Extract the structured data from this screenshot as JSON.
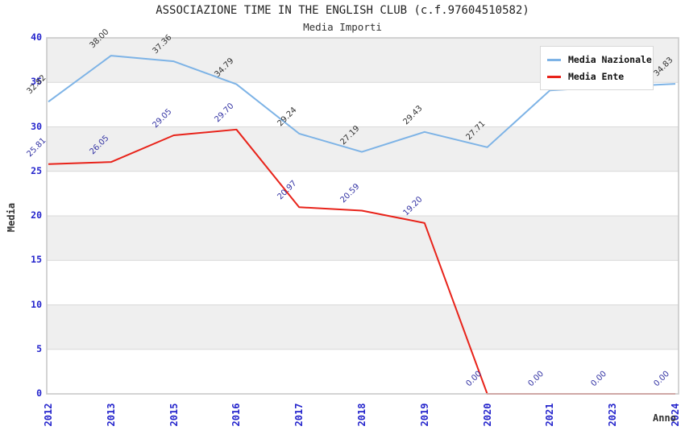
{
  "chart_data": {
    "type": "line",
    "title": "ASSOCIAZIONE TIME IN THE ENGLISH CLUB (c.f.97604510582)",
    "subtitle": "Media Importi",
    "xlabel": "Anno",
    "ylabel": "Media",
    "ylim": [
      0,
      40
    ],
    "ytick_step": 5,
    "yticks": [
      0,
      5,
      10,
      15,
      20,
      25,
      30,
      35,
      40
    ],
    "grid": true,
    "legend_position": "top-right",
    "categories": [
      "2012",
      "2013",
      "2015",
      "2016",
      "2017",
      "2018",
      "2019",
      "2020",
      "2021",
      "2023",
      "2024"
    ],
    "series": [
      {
        "name": "Media Nazionale",
        "color": "#7db3e6",
        "label_color": "#333333",
        "values": [
          32.82,
          38.0,
          37.36,
          34.79,
          29.24,
          27.19,
          29.43,
          27.71,
          34.1,
          34.5,
          34.83
        ],
        "labels": [
          "32.82",
          "38.00",
          "37.36",
          "34.79",
          "29.24",
          "27.19",
          "29.43",
          "27.71",
          null,
          null,
          "34.83"
        ]
      },
      {
        "name": "Media Ente",
        "color": "#e8231a",
        "label_color": "#3434a4",
        "values": [
          25.81,
          26.05,
          29.05,
          29.7,
          20.97,
          20.59,
          19.2,
          0.0,
          0.0,
          0.0,
          0.0
        ],
        "labels": [
          "25.81",
          "26.05",
          "29.05",
          "29.70",
          "20.97",
          "20.59",
          "19.20",
          "0.00",
          "0.00",
          "0.00",
          "0.00"
        ]
      }
    ],
    "style": {
      "band_color_even": "#ffffff",
      "band_color_odd": "#efefef",
      "gridline_color": "#d9d9d9",
      "frame_color": "#c9c9c9",
      "tick_label_color": "#2424cc"
    }
  }
}
